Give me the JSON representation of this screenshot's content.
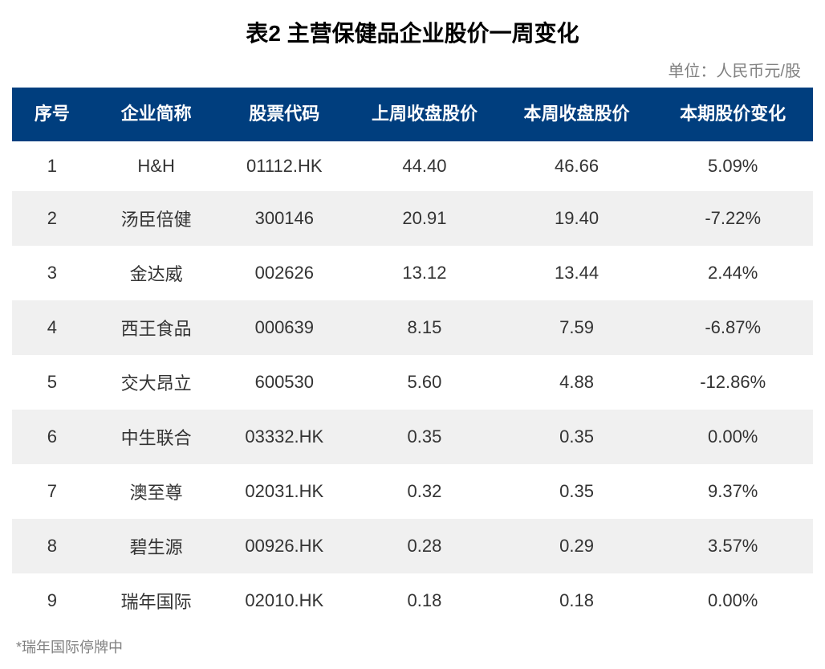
{
  "title": "表2 主营保健品企业股价一周变化",
  "unit": "单位：人民币元/股",
  "footnote": "*瑞年国际停牌中",
  "table": {
    "header_bg": "#003e7e",
    "header_color": "#ffffff",
    "row_alt_bg": "#f0f0f0",
    "text_color": "#333333",
    "columns": [
      "序号",
      "企业简称",
      "股票代码",
      "上周收盘股价",
      "本周收盘股价",
      "本期股价变化"
    ],
    "rows": [
      [
        "1",
        "H&H",
        "01112.HK",
        "44.40",
        "46.66",
        "5.09%"
      ],
      [
        "2",
        "汤臣倍健",
        "300146",
        "20.91",
        "19.40",
        "-7.22%"
      ],
      [
        "3",
        "金达威",
        "002626",
        "13.12",
        "13.44",
        "2.44%"
      ],
      [
        "4",
        "西王食品",
        "000639",
        "8.15",
        "7.59",
        "-6.87%"
      ],
      [
        "5",
        "交大昂立",
        "600530",
        "5.60",
        "4.88",
        "-12.86%"
      ],
      [
        "6",
        "中生联合",
        "03332.HK",
        "0.35",
        "0.35",
        "0.00%"
      ],
      [
        "7",
        "澳至尊",
        "02031.HK",
        "0.32",
        "0.35",
        "9.37%"
      ],
      [
        "8",
        "碧生源",
        "00926.HK",
        "0.28",
        "0.29",
        "3.57%"
      ],
      [
        "9",
        "瑞年国际",
        "02010.HK",
        "0.18",
        "0.18",
        "0.00%"
      ]
    ]
  }
}
